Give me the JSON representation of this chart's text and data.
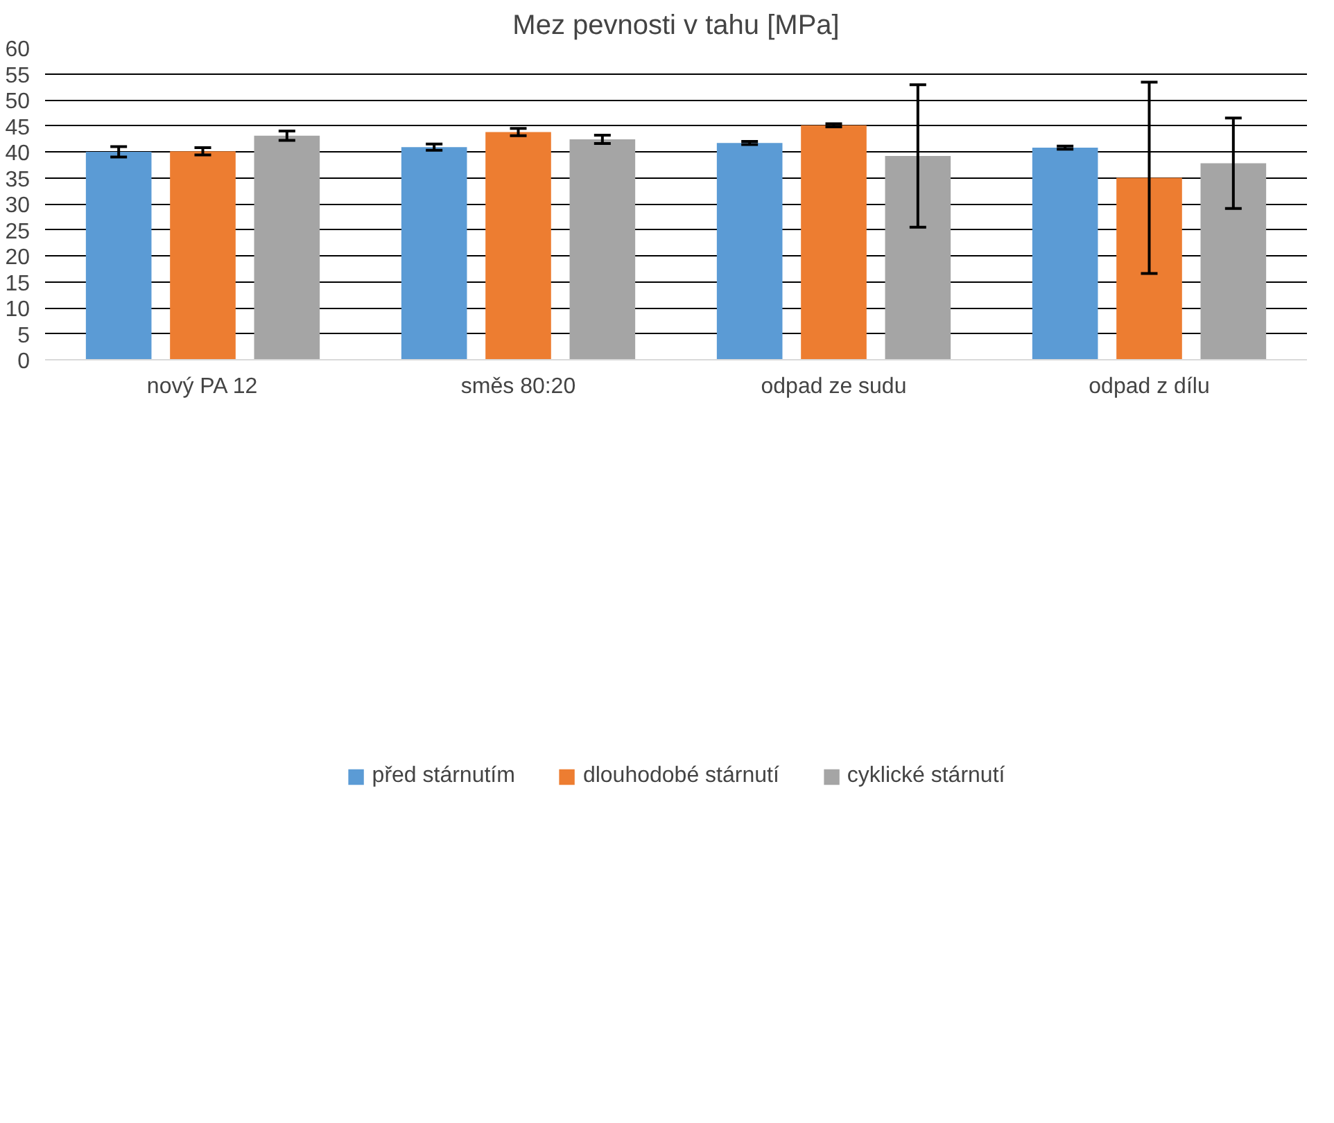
{
  "chart_data": {
    "type": "bar",
    "title": "Mez pevnosti v tahu [MPa]",
    "categories": [
      "nový PA 12",
      "směs 80:20",
      "odpad ze sudu",
      "odpad z dílu"
    ],
    "series": [
      {
        "name": "před stárnutím",
        "color": "#5b9bd5",
        "values": [
          40.0,
          40.9,
          41.7,
          40.8
        ],
        "errors": [
          1.0,
          0.6,
          0.3,
          0.3
        ]
      },
      {
        "name": "dlouhodobé stárnutí",
        "color": "#ed7d31",
        "values": [
          40.1,
          43.8,
          45.1,
          35.0
        ],
        "errors": [
          0.7,
          0.7,
          0.3,
          [
            16.6,
            53.4
          ]
        ]
      },
      {
        "name": "cyklické stárnutí",
        "color": "#a5a5a5",
        "values": [
          43.1,
          42.4,
          39.2,
          37.8
        ],
        "errors": [
          0.9,
          0.8,
          13.7,
          8.7
        ]
      }
    ],
    "ylim": [
      0,
      60
    ],
    "yticks": [
      0,
      5,
      10,
      15,
      20,
      25,
      30,
      35,
      40,
      45,
      50,
      55,
      60
    ],
    "grid": "y",
    "legend": "bottom"
  }
}
